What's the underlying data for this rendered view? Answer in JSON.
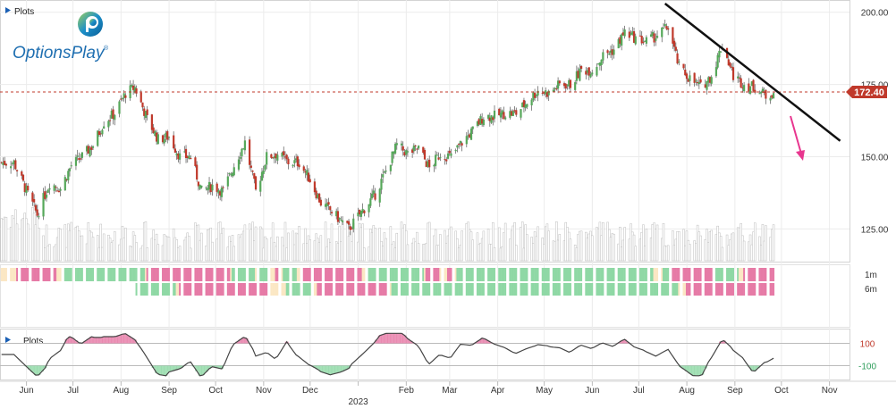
{
  "header": {
    "plots_label": "Plots",
    "logo_text": "OptionsPlay",
    "logo_mark": "®"
  },
  "indicator_panel": {
    "plots_label": "Plots"
  },
  "badges": {
    "1m": "1m",
    "6m": "6m"
  },
  "colors": {
    "up": "#56a85a",
    "down": "#c0392b",
    "volume": "#d9d9d9",
    "heat_pink": "#e67aa6",
    "heat_green": "#8fd8a5",
    "heat_cream": "#fbe7c4",
    "price_tag": "#c0392b",
    "trend": "#111111",
    "arrow": "#e8368f",
    "osc": "#444444"
  },
  "chart_data": [
    {
      "type": "candlestick",
      "title": "",
      "xlabel": "",
      "ylabel": "",
      "y_ticks": [
        200,
        175,
        150,
        125
      ],
      "y_tick_labels": [
        "200.00",
        "175.00",
        "150.00",
        "125.00"
      ],
      "ylim": [
        114,
        203
      ],
      "x_tick_labels": [
        "Jun",
        "Jul",
        "Aug",
        "Sep",
        "Oct",
        "Nov",
        "Dec",
        "2023",
        "Feb",
        "Mar",
        "Apr",
        "May",
        "Jun",
        "Jul",
        "Aug",
        "Sep",
        "Oct",
        "Nov"
      ],
      "year_label": "2023",
      "last_price": 172.4,
      "last_price_label": "172.40",
      "close_series": [
        {
          "date": "2022-06-01",
          "close": 148
        },
        {
          "date": "2022-06-10",
          "close": 137
        },
        {
          "date": "2022-06-16",
          "close": 130
        },
        {
          "date": "2022-06-24",
          "close": 141
        },
        {
          "date": "2022-07-01",
          "close": 139
        },
        {
          "date": "2022-07-08",
          "close": 147
        },
        {
          "date": "2022-07-15",
          "close": 150
        },
        {
          "date": "2022-07-22",
          "close": 154
        },
        {
          "date": "2022-07-29",
          "close": 162
        },
        {
          "date": "2022-08-05",
          "close": 165
        },
        {
          "date": "2022-08-12",
          "close": 172
        },
        {
          "date": "2022-08-18",
          "close": 174
        },
        {
          "date": "2022-08-26",
          "close": 163
        },
        {
          "date": "2022-09-02",
          "close": 156
        },
        {
          "date": "2022-09-09",
          "close": 157
        },
        {
          "date": "2022-09-16",
          "close": 150
        },
        {
          "date": "2022-09-23",
          "close": 150
        },
        {
          "date": "2022-09-30",
          "close": 138
        },
        {
          "date": "2022-10-07",
          "close": 140
        },
        {
          "date": "2022-10-14",
          "close": 138
        },
        {
          "date": "2022-10-21",
          "close": 147
        },
        {
          "date": "2022-10-28",
          "close": 155
        },
        {
          "date": "2022-11-04",
          "close": 138
        },
        {
          "date": "2022-11-11",
          "close": 150
        },
        {
          "date": "2022-11-18",
          "close": 151
        },
        {
          "date": "2022-11-25",
          "close": 148
        },
        {
          "date": "2022-12-02",
          "close": 148
        },
        {
          "date": "2022-12-09",
          "close": 142
        },
        {
          "date": "2022-12-16",
          "close": 134
        },
        {
          "date": "2022-12-23",
          "close": 131
        },
        {
          "date": "2023-01-03",
          "close": 125
        },
        {
          "date": "2023-01-10",
          "close": 130
        },
        {
          "date": "2023-01-20",
          "close": 137
        },
        {
          "date": "2023-01-27",
          "close": 145
        },
        {
          "date": "2023-02-03",
          "close": 154
        },
        {
          "date": "2023-02-10",
          "close": 151
        },
        {
          "date": "2023-02-17",
          "close": 153
        },
        {
          "date": "2023-02-24",
          "close": 146
        },
        {
          "date": "2023-03-03",
          "close": 151
        },
        {
          "date": "2023-03-10",
          "close": 150
        },
        {
          "date": "2023-03-17",
          "close": 155
        },
        {
          "date": "2023-03-24",
          "close": 159
        },
        {
          "date": "2023-03-31",
          "close": 164
        },
        {
          "date": "2023-04-07",
          "close": 164
        },
        {
          "date": "2023-04-14",
          "close": 165
        },
        {
          "date": "2023-04-21",
          "close": 165
        },
        {
          "date": "2023-04-28",
          "close": 169
        },
        {
          "date": "2023-05-05",
          "close": 173
        },
        {
          "date": "2023-05-12",
          "close": 172
        },
        {
          "date": "2023-05-19",
          "close": 175
        },
        {
          "date": "2023-05-26",
          "close": 175
        },
        {
          "date": "2023-06-02",
          "close": 180
        },
        {
          "date": "2023-06-09",
          "close": 180
        },
        {
          "date": "2023-06-16",
          "close": 185
        },
        {
          "date": "2023-06-23",
          "close": 187
        },
        {
          "date": "2023-06-30",
          "close": 193
        },
        {
          "date": "2023-07-07",
          "close": 191
        },
        {
          "date": "2023-07-14",
          "close": 190
        },
        {
          "date": "2023-07-21",
          "close": 192
        },
        {
          "date": "2023-07-28",
          "close": 195
        },
        {
          "date": "2023-08-04",
          "close": 181
        },
        {
          "date": "2023-08-11",
          "close": 177
        },
        {
          "date": "2023-08-18",
          "close": 174
        },
        {
          "date": "2023-08-25",
          "close": 178
        },
        {
          "date": "2023-09-01",
          "close": 189
        },
        {
          "date": "2023-09-08",
          "close": 178
        },
        {
          "date": "2023-09-15",
          "close": 175
        },
        {
          "date": "2023-09-22",
          "close": 174
        },
        {
          "date": "2023-09-29",
          "close": 171
        },
        {
          "date": "2023-10-04",
          "close": 172.4
        }
      ]
    },
    {
      "type": "heatmap",
      "rows": [
        "1m",
        "6m"
      ],
      "legend": [
        "pink",
        "green",
        "cream"
      ]
    },
    {
      "type": "line",
      "y_ticks": [
        100,
        -100
      ],
      "y_tick_labels": [
        "100",
        "-100"
      ],
      "ylim": [
        -200,
        200
      ]
    }
  ]
}
